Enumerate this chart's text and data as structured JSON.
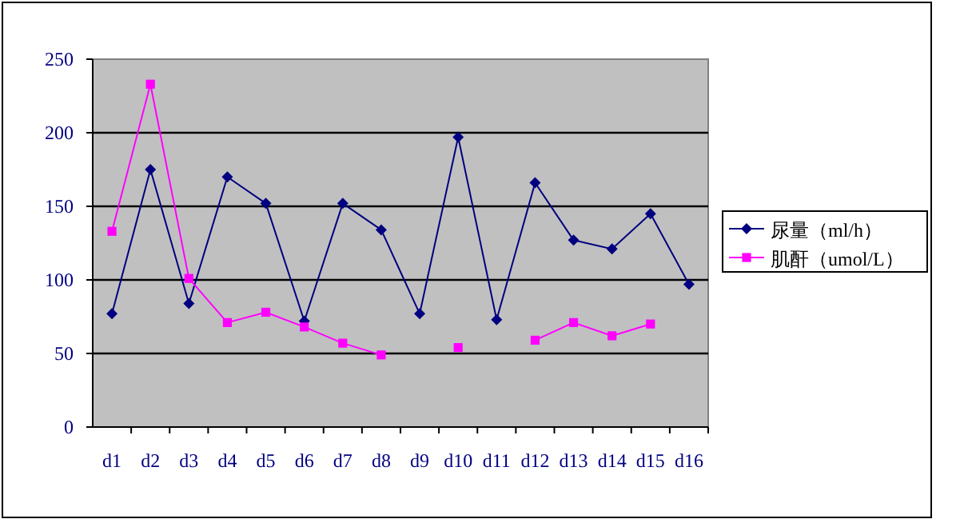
{
  "chart_data": {
    "type": "line",
    "categories": [
      "d1",
      "d2",
      "d3",
      "d4",
      "d5",
      "d6",
      "d7",
      "d8",
      "d9",
      "d10",
      "d11",
      "d12",
      "d13",
      "d14",
      "d15",
      "d16"
    ],
    "series": [
      {
        "name": "尿量（ml/h）",
        "color": "#000080",
        "marker": "diamond",
        "values": [
          77,
          175,
          84,
          170,
          152,
          72,
          152,
          134,
          77,
          197,
          73,
          166,
          127,
          121,
          145,
          97
        ]
      },
      {
        "name": "肌酐（umol/L）",
        "color": "#ff00ff",
        "marker": "square",
        "values": [
          133,
          233,
          101,
          71,
          78,
          68,
          57,
          49,
          null,
          54,
          null,
          59,
          71,
          62,
          70,
          null
        ]
      }
    ],
    "ylim": [
      0,
      250
    ],
    "yticks": [
      0,
      50,
      100,
      150,
      200,
      250
    ],
    "grid": "y",
    "legend": "right"
  }
}
